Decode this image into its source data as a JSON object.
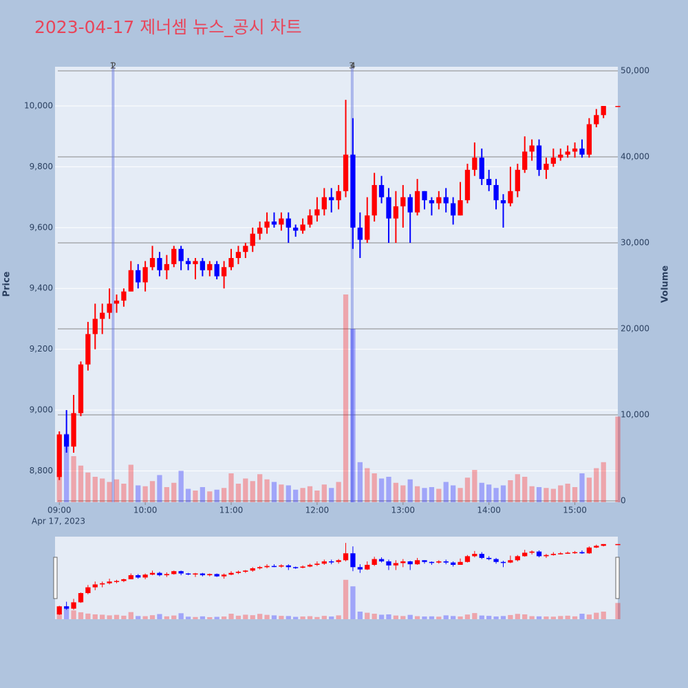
{
  "chart_data": {
    "type": "candlestick",
    "title": "2023-04-17 제너셈 뉴스_공시 차트",
    "y_label": "Price",
    "y2_label": "Volume",
    "x_sublabel": "Apr 17, 2023",
    "increasing_color": "#ff0000",
    "decreasing_color": "#0000ff",
    "xlim": [
      "08:57",
      "15:30"
    ],
    "xticks": [
      "09:00",
      "10:00",
      "11:00",
      "12:00",
      "13:00",
      "14:00",
      "15:00"
    ],
    "ylim": [
      8697,
      10129
    ],
    "yticks": [
      {
        "value": 8800,
        "label": "8,800"
      },
      {
        "value": 9000,
        "label": "9,000"
      },
      {
        "value": 9200,
        "label": "9,200"
      },
      {
        "value": 9400,
        "label": "9,400"
      },
      {
        "value": 9600,
        "label": "9,600"
      },
      {
        "value": 9800,
        "label": "9,800"
      },
      {
        "value": 10000,
        "label": "10,000"
      }
    ],
    "y2lim": [
      -160,
      50480
    ],
    "y2ticks": [
      0,
      {
        "value": 10000,
        "label": "10,000"
      },
      {
        "value": 20000,
        "label": "20,000"
      },
      {
        "value": 30000,
        "label": "30,000"
      },
      {
        "value": 40000,
        "label": "40,000"
      },
      {
        "value": 50000,
        "label": "50,000"
      }
    ],
    "annotations": [
      {
        "x": "09:37",
        "label": "1"
      },
      {
        "x": "09:38",
        "label": "2"
      },
      {
        "x": "12:24",
        "label": "3"
      },
      {
        "x": "12:25",
        "label": "4"
      }
    ],
    "x": [
      "09:00",
      "09:05",
      "09:10",
      "09:15",
      "09:20",
      "09:25",
      "09:30",
      "09:35",
      "09:40",
      "09:45",
      "09:50",
      "09:55",
      "10:00",
      "10:05",
      "10:10",
      "10:15",
      "10:20",
      "10:25",
      "10:30",
      "10:35",
      "10:40",
      "10:45",
      "10:50",
      "10:55",
      "11:00",
      "11:05",
      "11:10",
      "11:15",
      "11:20",
      "11:25",
      "11:30",
      "11:35",
      "11:40",
      "11:45",
      "11:50",
      "11:55",
      "12:00",
      "12:05",
      "12:10",
      "12:15",
      "12:20",
      "12:25",
      "12:30",
      "12:35",
      "12:40",
      "12:45",
      "12:50",
      "12:55",
      "13:00",
      "13:05",
      "13:10",
      "13:15",
      "13:20",
      "13:25",
      "13:30",
      "13:35",
      "13:40",
      "13:45",
      "13:50",
      "13:55",
      "14:00",
      "14:05",
      "14:10",
      "14:15",
      "14:20",
      "14:25",
      "14:30",
      "14:35",
      "14:40",
      "14:45",
      "14:50",
      "14:55",
      "15:00",
      "15:05",
      "15:10",
      "15:15",
      "15:20",
      "15:30"
    ],
    "open": [
      8780,
      8920,
      8880,
      8990,
      9150,
      9250,
      9300,
      9320,
      9350,
      9360,
      9390,
      9460,
      9420,
      9470,
      9500,
      9460,
      9480,
      9530,
      9490,
      9480,
      9490,
      9460,
      9480,
      9440,
      9470,
      9500,
      9520,
      9540,
      9580,
      9600,
      9620,
      9610,
      9630,
      9600,
      9590,
      9610,
      9640,
      9660,
      9700,
      9690,
      9720,
      9840,
      9600,
      9560,
      9640,
      9740,
      9700,
      9630,
      9670,
      9700,
      9650,
      9720,
      9690,
      9680,
      9700,
      9680,
      9640,
      9690,
      9790,
      9830,
      9760,
      9740,
      9690,
      9680,
      9720,
      9790,
      9850,
      9870,
      9790,
      9810,
      9830,
      9840,
      9850,
      9860,
      9840,
      9940,
      9970,
      10000
    ],
    "high": [
      8930,
      9000,
      9050,
      9160,
      9290,
      9350,
      9350,
      9400,
      9380,
      9400,
      9490,
      9480,
      9490,
      9540,
      9520,
      9510,
      9540,
      9540,
      9500,
      9500,
      9500,
      9490,
      9490,
      9490,
      9530,
      9540,
      9550,
      9600,
      9620,
      9650,
      9650,
      9650,
      9650,
      9610,
      9630,
      9660,
      9700,
      9730,
      9730,
      9740,
      10020,
      9960,
      9650,
      9700,
      9780,
      9770,
      9730,
      9720,
      9740,
      9710,
      9760,
      9720,
      9700,
      9720,
      9730,
      9700,
      9750,
      9810,
      9880,
      9860,
      9790,
      9760,
      9710,
      9800,
      9810,
      9900,
      9890,
      9890,
      9830,
      9860,
      9860,
      9870,
      9880,
      9890,
      9960,
      9990,
      10000,
      10000
    ],
    "low": [
      8770,
      8860,
      8860,
      8980,
      9130,
      9200,
      9250,
      9300,
      9320,
      9340,
      9390,
      9400,
      9390,
      9460,
      9440,
      9430,
      9470,
      9460,
      9460,
      9430,
      9440,
      9440,
      9430,
      9400,
      9460,
      9480,
      9500,
      9520,
      9560,
      9580,
      9600,
      9590,
      9550,
      9570,
      9580,
      9600,
      9620,
      9640,
      9650,
      9660,
      9700,
      9530,
      9500,
      9550,
      9620,
      9680,
      9550,
      9550,
      9600,
      9550,
      9640,
      9660,
      9640,
      9660,
      9650,
      9610,
      9640,
      9680,
      9770,
      9740,
      9720,
      9660,
      9600,
      9670,
      9700,
      9780,
      9820,
      9770,
      9760,
      9800,
      9820,
      9830,
      9830,
      9830,
      9830,
      9930,
      9960,
      10000
    ],
    "close": [
      8920,
      8880,
      8990,
      9150,
      9250,
      9300,
      9320,
      9350,
      9360,
      9390,
      9460,
      9420,
      9470,
      9500,
      9460,
      9480,
      9530,
      9490,
      9480,
      9490,
      9460,
      9480,
      9440,
      9470,
      9500,
      9520,
      9540,
      9580,
      9600,
      9620,
      9610,
      9630,
      9600,
      9590,
      9610,
      9640,
      9660,
      9700,
      9690,
      9720,
      9840,
      9600,
      9560,
      9640,
      9740,
      9700,
      9630,
      9670,
      9700,
      9650,
      9720,
      9690,
      9680,
      9700,
      9680,
      9640,
      9690,
      9790,
      9830,
      9760,
      9740,
      9690,
      9680,
      9720,
      9790,
      9850,
      9870,
      9790,
      9810,
      9830,
      9840,
      9850,
      9860,
      9840,
      9940,
      9970,
      10000,
      10000
    ],
    "volume": [
      3500,
      7800,
      5200,
      4100,
      3300,
      2800,
      2600,
      2200,
      2500,
      2000,
      4200,
      1800,
      1700,
      2300,
      3000,
      1600,
      2100,
      3500,
      1400,
      1200,
      1600,
      1100,
      1300,
      1500,
      3200,
      2000,
      2600,
      2300,
      3100,
      2500,
      2200,
      1900,
      1800,
      1300,
      1500,
      1700,
      1200,
      1900,
      1500,
      2200,
      24000,
      20000,
      4500,
      3800,
      3200,
      2600,
      2800,
      2100,
      1800,
      2500,
      1700,
      1500,
      1600,
      1400,
      2200,
      1800,
      1500,
      2700,
      3600,
      2100,
      1900,
      1500,
      1800,
      2400,
      3100,
      2800,
      1700,
      1600,
      1500,
      1400,
      1800,
      2000,
      1600,
      3200,
      2700,
      3800,
      4500,
      9800
    ]
  }
}
